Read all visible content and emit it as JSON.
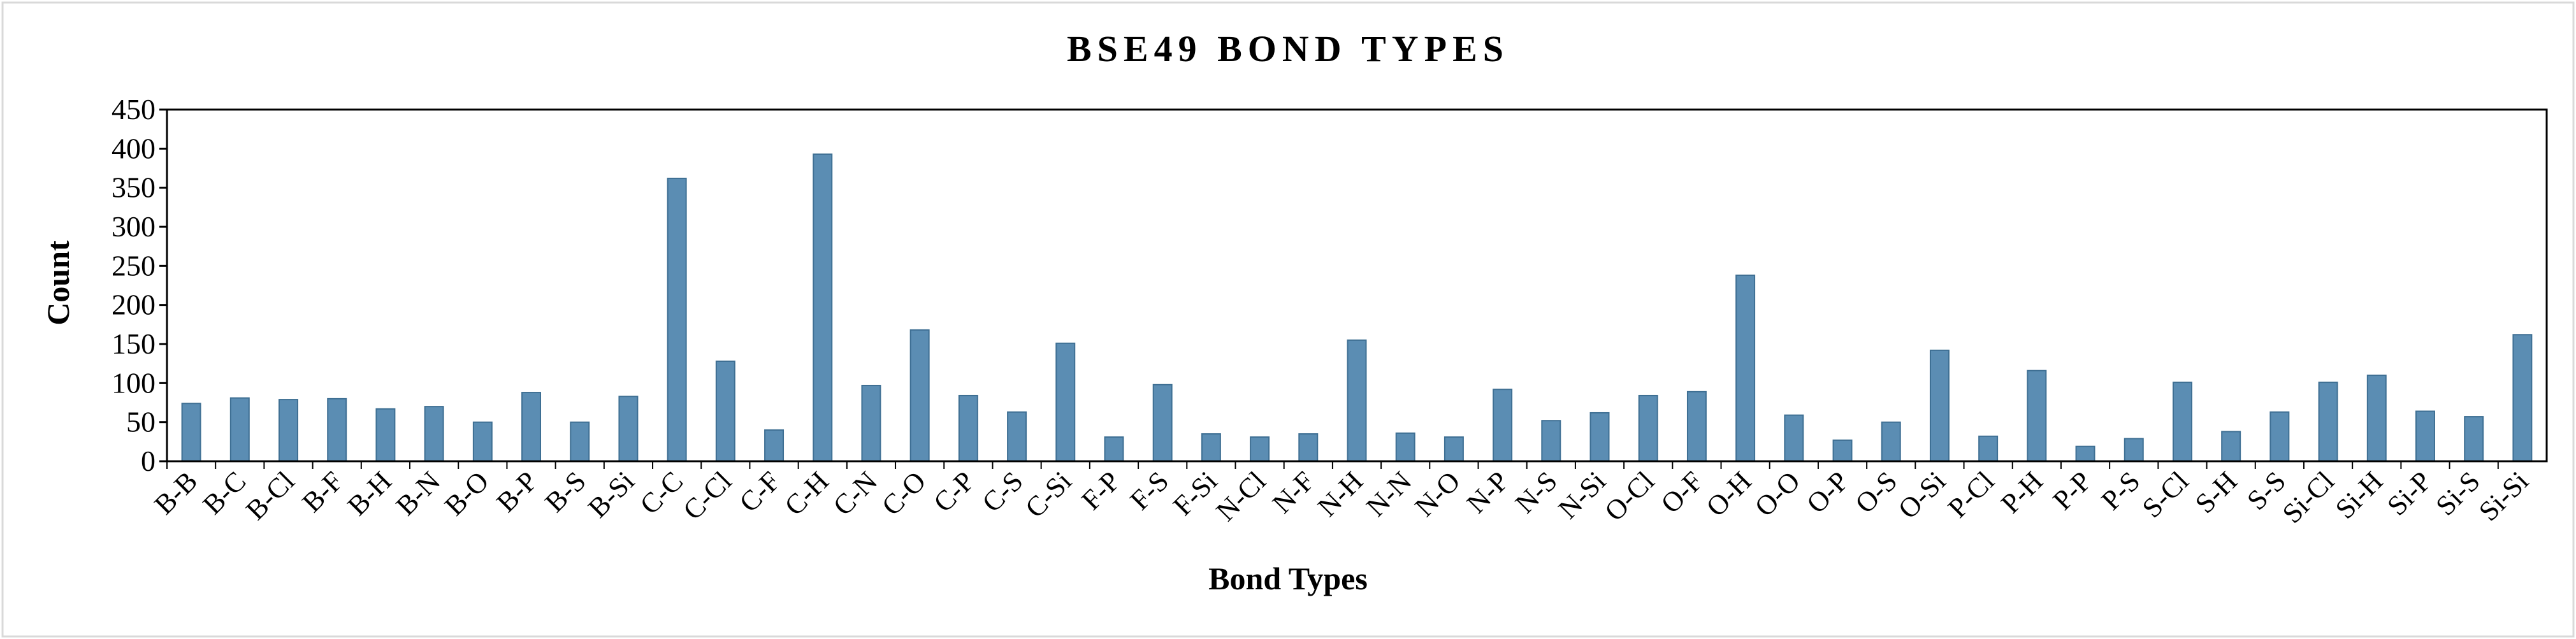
{
  "chart_data": {
    "type": "bar",
    "title": "BSE49 BOND TYPES",
    "xlabel": "Bond Types",
    "ylabel": "Count",
    "ylim": [
      0,
      450
    ],
    "yticks": [
      0,
      50,
      100,
      150,
      200,
      250,
      300,
      350,
      400,
      450
    ],
    "grid": false,
    "legend": "none",
    "bar_color": "#5b8db3",
    "bar_edge_color": "#3e6f93",
    "categories": [
      "B-B",
      "B-C",
      "B-Cl",
      "B-F",
      "B-H",
      "B-N",
      "B-O",
      "B-P",
      "B-S",
      "B-Si",
      "C-C",
      "C-Cl",
      "C-F",
      "C-H",
      "C-N",
      "C-O",
      "C-P",
      "C-S",
      "C-Si",
      "F-P",
      "F-S",
      "F-Si",
      "N-Cl",
      "N-F",
      "N-H",
      "N-N",
      "N-O",
      "N-P",
      "N-S",
      "N-Si",
      "O-Cl",
      "O-F",
      "O-H",
      "O-O",
      "O-P",
      "O-S",
      "O-Si",
      "P-Cl",
      "P-H",
      "P-P",
      "P-S",
      "S-Cl",
      "S-H",
      "S-S",
      "Si-Cl",
      "Si-H",
      "Si-P",
      "Si-S",
      "Si-Si"
    ],
    "values": [
      74,
      81,
      79,
      80,
      67,
      70,
      50,
      88,
      50,
      83,
      362,
      128,
      40,
      393,
      97,
      168,
      84,
      63,
      151,
      31,
      98,
      35,
      31,
      35,
      155,
      36,
      31,
      92,
      52,
      62,
      84,
      89,
      238,
      59,
      27,
      50,
      142,
      32,
      116,
      19,
      29,
      101,
      38,
      63,
      101,
      110,
      64,
      57,
      162
    ]
  }
}
